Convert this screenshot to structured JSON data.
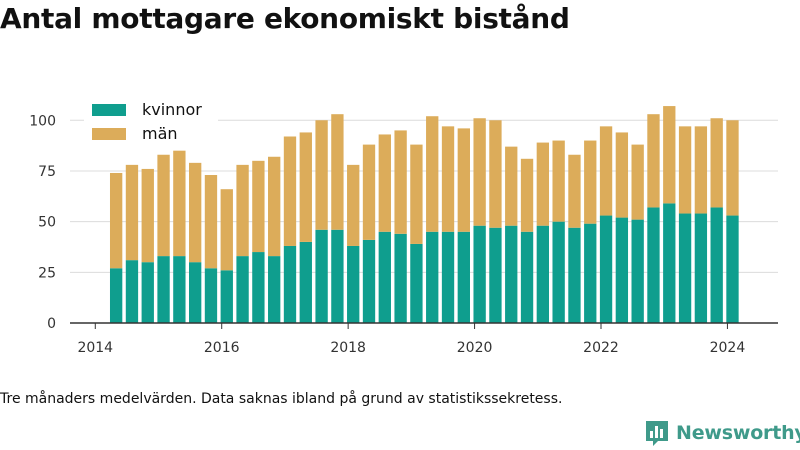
{
  "title": "Antal mottagare ekonomiskt bistånd",
  "footnote": "Tre månaders medelvärden. Data saknas ibland på grund av statistikssekretess.",
  "brand": {
    "name": "Newsworthy",
    "icon": "bar-chart-icon",
    "color": "#3f9a8a"
  },
  "colors": {
    "kvinnor": "#0f9e8e",
    "man": "#dcac5a",
    "grid": "#dcdcdc",
    "axis": "#333333"
  },
  "legend": {
    "placement": "top-left"
  },
  "chart_data": {
    "type": "bar",
    "stacked": true,
    "grid": true,
    "xlim": [
      2013.6,
      2024.8
    ],
    "ylim": [
      0,
      110
    ],
    "xticks": [
      2014,
      2016,
      2018,
      2020,
      2022,
      2024
    ],
    "xtick_labels": [
      "2014",
      "2016",
      "2018",
      "2020",
      "2022",
      "2024"
    ],
    "yticks": [
      0,
      25,
      50,
      75,
      100
    ],
    "ytick_labels": [
      "0",
      "25",
      "50",
      "75",
      "100"
    ],
    "x": [
      2014.33,
      2014.58,
      2014.83,
      2015.08,
      2015.33,
      2015.58,
      2015.83,
      2016.08,
      2016.33,
      2016.58,
      2016.83,
      2017.08,
      2017.33,
      2017.58,
      2017.83,
      2018.08,
      2018.33,
      2018.58,
      2018.83,
      2019.08,
      2019.33,
      2019.58,
      2019.83,
      2020.08,
      2020.33,
      2020.58,
      2020.83,
      2021.08,
      2021.33,
      2021.58,
      2021.83,
      2022.08,
      2022.33,
      2022.58,
      2022.83,
      2023.08,
      2023.33,
      2023.58,
      2023.83,
      2024.08
    ],
    "series": [
      {
        "name": "kvinnor",
        "values": [
          27,
          31,
          30,
          33,
          33,
          30,
          27,
          26,
          33,
          35,
          33,
          38,
          40,
          46,
          46,
          38,
          41,
          45,
          44,
          39,
          45,
          45,
          45,
          48,
          47,
          48,
          45,
          48,
          50,
          47,
          49,
          53,
          52,
          51,
          57,
          59,
          54,
          54,
          57,
          53
        ]
      },
      {
        "name": "män",
        "values": [
          47,
          47,
          46,
          50,
          52,
          49,
          46,
          40,
          45,
          45,
          49,
          54,
          54,
          54,
          57,
          40,
          47,
          48,
          51,
          49,
          57,
          52,
          51,
          53,
          53,
          39,
          36,
          41,
          40,
          36,
          41,
          44,
          42,
          37,
          46,
          48,
          43,
          43,
          44,
          47
        ]
      }
    ]
  }
}
